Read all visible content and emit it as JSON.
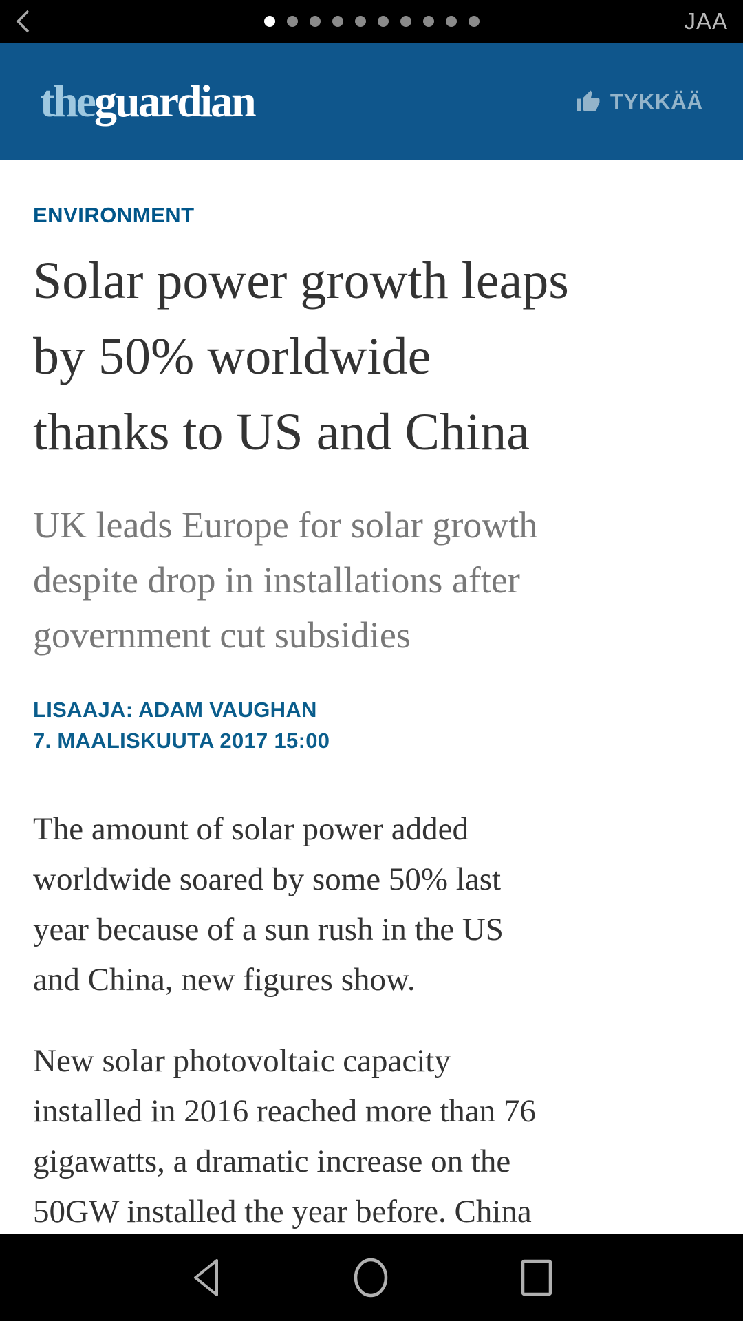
{
  "status_bar": {
    "share_label": "JAA",
    "back_icon": "back-chevron",
    "page_dots": {
      "count": 10,
      "active_index": 0
    }
  },
  "masthead": {
    "logo_the": "the",
    "logo_guardian": "guardian",
    "like_label": "TYKKÄÄ",
    "like_icon": "thumbs-up",
    "bg_color": "#0f568c",
    "logo_the_color": "#9ec8e0",
    "logo_guardian_color": "#ffffff"
  },
  "article": {
    "kicker": "ENVIRONMENT",
    "kicker_color": "#00568a",
    "headline": "Solar power growth leaps\nby 50% worldwide\nthanks to US and China",
    "standfirst": "UK leads Europe for solar growth\ndespite drop in installations after\ngovernment cut subsidies",
    "byline": "LISAAJA: ADAM VAUGHAN",
    "dateline": "7. MAALISKUUTA 2017 15:00",
    "meta_color": "#0a5d8c",
    "paragraphs": [
      "The amount of solar power added\nworldwide soared by some 50% last\nyear because of a sun rush in the US\nand China, new figures show.",
      "New solar photovoltaic capacity\ninstalled in 2016 reached more than 76\ngigawatts, a dramatic increase on the\n50GW installed the year before. China"
    ]
  },
  "nav_bar": {
    "icons": [
      "back-triangle",
      "home-circle",
      "recents-square"
    ],
    "icon_color": "#b0b0b0"
  }
}
